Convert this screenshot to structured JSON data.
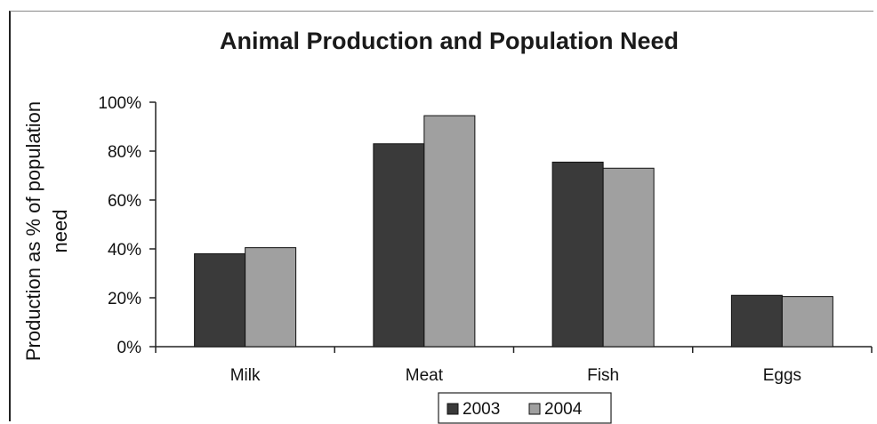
{
  "chart_data": {
    "type": "bar",
    "title": "Animal Production and Population Need",
    "xlabel": "",
    "ylabel_lines": [
      "Production as % of population",
      "need"
    ],
    "categories": [
      "Milk",
      "Meat",
      "Fish",
      "Eggs"
    ],
    "series": [
      {
        "name": "2003",
        "color": "#3a3a3a",
        "values": [
          38,
          83,
          75.5,
          21
        ]
      },
      {
        "name": "2004",
        "color": "#a0a0a0",
        "values": [
          40.5,
          94.5,
          73,
          20.5
        ]
      }
    ],
    "ylim": [
      0,
      100
    ],
    "yticks": [
      0,
      20,
      40,
      60,
      80,
      100
    ],
    "ytick_format": "percent",
    "grid": false,
    "legend_position": "bottom"
  }
}
